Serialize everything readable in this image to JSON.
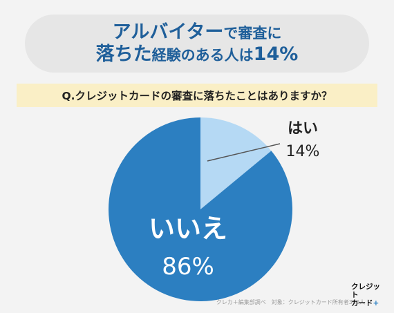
{
  "title": {
    "line1_main": "アルバイター",
    "line1_small": "で審査に",
    "line2_main": "落ちた",
    "line2_small": "経験のある人は",
    "line2_pct": "14%"
  },
  "question": "Q.クレジットカードの審査に落ちたことはありますか？",
  "chart_data": {
    "type": "pie",
    "title": "",
    "slices": [
      {
        "label": "はい",
        "value": 14,
        "value_label": "14%",
        "color": "#b5d9f4"
      },
      {
        "label": "いいえ",
        "value": 86,
        "value_label": "86%",
        "color": "#2c7fc1"
      }
    ],
    "start_angle_deg": 0,
    "direction": "clockwise",
    "legend": "none"
  },
  "footer": {
    "source": "クレカ＋編集部調べ　対象：クレジットカード所有者360人"
  },
  "logo": {
    "line1": "クレジット",
    "line2": "カード",
    "plus": "+"
  }
}
